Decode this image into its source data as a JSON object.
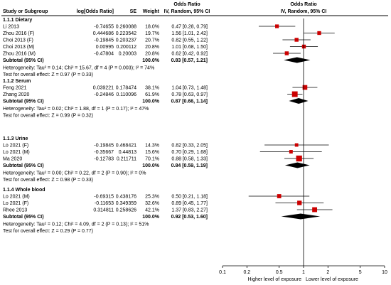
{
  "header": {
    "study_col": "Study or Subgroup",
    "logor_col": "log[Odds Ratio]",
    "se_col": "SE",
    "weight_col": "Weight",
    "or_col_top": "Odds Ratio",
    "or_col_bottom": "IV, Random, 95% CI",
    "plot_col_top": "Odds Ratio",
    "plot_col_bottom": "IV, Random, 95% CI"
  },
  "axis": {
    "ticks": [
      "0.1",
      "0.2",
      "0.5",
      "1",
      "2",
      "5",
      "10"
    ],
    "left_label": "Higher level of exposure",
    "right_label": "Lower level of exposure"
  },
  "chart_data": {
    "type": "forest",
    "x_scale": "log",
    "xlim": [
      0.1,
      10
    ],
    "colors": {
      "study_marker": "#cc0000",
      "summary_diamond": "#000000"
    },
    "subgroups": [
      {
        "title": "1.1.1 Dietary",
        "studies": [
          {
            "name": "Li 2013",
            "logor": "-0.74655",
            "se": "0.260088",
            "weight": "18.0%",
            "ci_text": "0.47 [0.28, 0.79]",
            "or": 0.47,
            "lo": 0.28,
            "hi": 0.79,
            "w": 18.0
          },
          {
            "name": "Zhou 2016 (F)",
            "logor": "0.444686",
            "se": "0.223542",
            "weight": "19.7%",
            "ci_text": "1.56 [1.01, 2.42]",
            "or": 1.56,
            "lo": 1.01,
            "hi": 2.42,
            "w": 19.7
          },
          {
            "name": "Choi 2013 (F)",
            "logor": "-0.19845",
            "se": "0.203237",
            "weight": "20.7%",
            "ci_text": "0.82 [0.55, 1.22]",
            "or": 0.82,
            "lo": 0.55,
            "hi": 1.22,
            "w": 20.7
          },
          {
            "name": "Choi 2013 (M)",
            "logor": "0.00995",
            "se": "0.200112",
            "weight": "20.8%",
            "ci_text": "1.01 [0.68, 1.50]",
            "or": 1.01,
            "lo": 0.68,
            "hi": 1.5,
            "w": 20.8
          },
          {
            "name": "Zhou 2016 (M)",
            "logor": "-0.47804",
            "se": "0.20003",
            "weight": "20.8%",
            "ci_text": "0.62 [0.42, 0.92]",
            "or": 0.62,
            "lo": 0.42,
            "hi": 0.92,
            "w": 20.8
          }
        ],
        "subtotal": {
          "label": "Subtotal (95% CI)",
          "weight": "100.0%",
          "ci_text": "0.83 [0.57, 1.21]",
          "or": 0.83,
          "lo": 0.57,
          "hi": 1.21
        },
        "heterogeneity": "Heterogeneity: Tau² = 0.14; Chi² = 15.67, df = 4 (P = 0.003); I² = 74%",
        "overall_test": "Test for overall effect: Z = 0.97 (P = 0.33)"
      },
      {
        "title": "1.1.2 Serum",
        "studies": [
          {
            "name": "Feng 2021",
            "logor": "0.039221",
            "se": "0.178474",
            "weight": "38.1%",
            "ci_text": "1.04 [0.73, 1.48]",
            "or": 1.04,
            "lo": 0.73,
            "hi": 1.48,
            "w": 38.1
          },
          {
            "name": "Zhang 2020",
            "logor": "-0.24846",
            "se": "0.110096",
            "weight": "61.9%",
            "ci_text": "0.78 [0.63, 0.97]",
            "or": 0.78,
            "lo": 0.63,
            "hi": 0.97,
            "w": 61.9
          }
        ],
        "subtotal": {
          "label": "Subtotal (95% CI)",
          "weight": "100.0%",
          "ci_text": "0.87 [0.66, 1.14]",
          "or": 0.87,
          "lo": 0.66,
          "hi": 1.14
        },
        "heterogeneity": "Heterogeneity: Tau² = 0.02; Chi² = 1.88, df = 1 (P = 0.17); I² = 47%",
        "overall_test": "Test for overall effect: Z = 0.99 (P = 0.32)"
      },
      {
        "title": "1.1.3 Urine",
        "studies": [
          {
            "name": "Lo 2021 (F)",
            "logor": "-0.19845",
            "se": "0.468421",
            "weight": "14.3%",
            "ci_text": "0.82 [0.33, 2.05]",
            "or": 0.82,
            "lo": 0.33,
            "hi": 2.05,
            "w": 14.3
          },
          {
            "name": "Lo 2021 (M)",
            "logor": "-0.35667",
            "se": "0.44813",
            "weight": "15.6%",
            "ci_text": "0.70 [0.29, 1.68]",
            "or": 0.7,
            "lo": 0.29,
            "hi": 1.68,
            "w": 15.6
          },
          {
            "name": "Ma 2020",
            "logor": "-0.12783",
            "se": "0.211711",
            "weight": "70.1%",
            "ci_text": "0.88 [0.58, 1.33]",
            "or": 0.88,
            "lo": 0.58,
            "hi": 1.33,
            "w": 70.1
          }
        ],
        "subtotal": {
          "label": "Subtotal (95% CI)",
          "weight": "100.0%",
          "ci_text": "0.84 [0.59, 1.19]",
          "or": 0.84,
          "lo": 0.59,
          "hi": 1.19
        },
        "heterogeneity": "Heterogeneity: Tau² = 0.00; Chi² = 0.22, df = 2 (P = 0.90); I² = 0%",
        "overall_test": "Test for overall effect: Z = 0.98 (P = 0.33)"
      },
      {
        "title": "1.1.4 Whole blood",
        "studies": [
          {
            "name": "Lo 2021 (M)",
            "logor": "-0.69315",
            "se": "0.438176",
            "weight": "25.3%",
            "ci_text": "0.50 [0.21, 1.18]",
            "or": 0.5,
            "lo": 0.21,
            "hi": 1.18,
            "w": 25.3
          },
          {
            "name": "Lo 2021 (F)",
            "logor": "-0.11653",
            "se": "0.349359",
            "weight": "32.6%",
            "ci_text": "0.89 [0.45, 1.77]",
            "or": 0.89,
            "lo": 0.45,
            "hi": 1.77,
            "w": 32.6
          },
          {
            "name": "Rhee 2013",
            "logor": "0.314811",
            "se": "0.258626",
            "weight": "42.1%",
            "ci_text": "1.37 [0.83, 2.27]",
            "or": 1.37,
            "lo": 0.83,
            "hi": 2.27,
            "w": 42.1
          }
        ],
        "subtotal": {
          "label": "Subtotal (95% CI)",
          "weight": "100.0%",
          "ci_text": "0.92 [0.53, 1.60]",
          "or": 0.92,
          "lo": 0.53,
          "hi": 1.6
        },
        "heterogeneity": "Heterogeneity: Tau² = 0.12; Chi² = 4.09, df = 2 (P = 0.13); I² = 51%",
        "overall_test": "Test for overall effect: Z = 0.29 (P = 0.77)"
      }
    ]
  }
}
